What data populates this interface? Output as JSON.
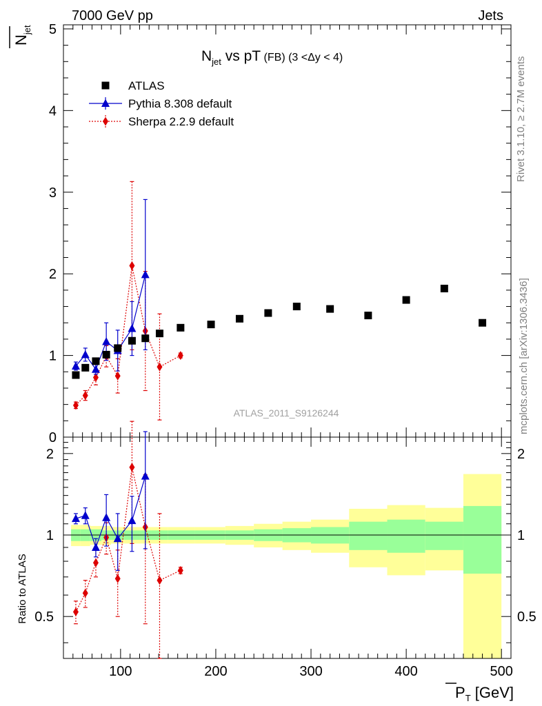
{
  "header": {
    "left": "7000 GeV pp",
    "right": "Jets"
  },
  "side": {
    "rivet": "Rivet 3.1.10, ≥ 2.7M events",
    "mcplots": "mcplots.cern.ch [arXiv:1306.3436]"
  },
  "chart_data": [
    {
      "type": "scatter",
      "title": "N_jet vs pT (FB) (3 < Δy < 4)",
      "title_main": "N",
      "title_sub": "jet",
      "title_mid": " vs pT",
      "title_small": " (FB) (3 <Δy < 4)",
      "ylabel": "N̄jet",
      "ylabel_main": "N",
      "ylabel_sub": "jet",
      "watermark": "ATLAS_2011_S9126244",
      "xlim": [
        40,
        510
      ],
      "ylim": [
        0,
        5.05
      ],
      "yticks": [
        0,
        1,
        2,
        3,
        4,
        5
      ],
      "ytick_labels": [
        "0",
        "1",
        "2",
        "3",
        "4",
        "5"
      ],
      "legend_position": "top-left",
      "series": [
        {
          "name": "ATLAS",
          "color": "#000000",
          "marker": "square",
          "x": [
            53,
            63,
            74,
            85,
            97,
            112,
            126,
            141,
            163,
            195,
            225,
            255,
            285,
            320,
            360,
            400,
            440,
            480
          ],
          "y": [
            0.76,
            0.85,
            0.93,
            1.01,
            1.09,
            1.18,
            1.21,
            1.27,
            1.34,
            1.38,
            1.45,
            1.52,
            1.6,
            1.57,
            1.49,
            1.68,
            1.82,
            1.4
          ]
        },
        {
          "name": "Pythia 8.308 default",
          "color": "#0000cc",
          "marker": "triangle",
          "line": "solid",
          "x": [
            53,
            63,
            74,
            85,
            97,
            112,
            126
          ],
          "y": [
            0.87,
            1.01,
            0.83,
            1.17,
            1.06,
            1.33,
            1.99
          ],
          "yerr": [
            0.05,
            0.08,
            0.06,
            0.23,
            0.25,
            0.33,
            0.92
          ]
        },
        {
          "name": "Sherpa 2.2.9 default",
          "color": "#dd0000",
          "marker": "diamond",
          "line": "dotted",
          "x": [
            53,
            63,
            74,
            85,
            97,
            112,
            126,
            141,
            163
          ],
          "y": [
            0.39,
            0.51,
            0.73,
            0.99,
            0.75,
            2.1,
            1.3,
            0.86,
            1.0
          ],
          "yerr": [
            0.04,
            0.06,
            0.09,
            0.13,
            0.21,
            1.03,
            0.73,
            0.65,
            0.03
          ]
        }
      ]
    },
    {
      "type": "scatter",
      "title": "",
      "xlabel": "P̄T [GeV]",
      "xlabel_main": "P",
      "xlabel_sub": "T",
      "xlabel_unit": " [GeV]",
      "ylabel": "Ratio to ATLAS",
      "xlim": [
        40,
        510
      ],
      "ylim": [
        0.35,
        2.3
      ],
      "xticks": [
        100,
        200,
        300,
        400,
        500
      ],
      "xtick_labels": [
        "100",
        "200",
        "300",
        "400",
        "500"
      ],
      "yticks": [
        0.5,
        1,
        2
      ],
      "ytick_labels": [
        "0.5",
        "1",
        "2"
      ],
      "reference_line": 1,
      "bands": {
        "edges": [
          48,
          58,
          68,
          80,
          90,
          104,
          120,
          132,
          150,
          178,
          210,
          240,
          270,
          300,
          340,
          380,
          420,
          460,
          500
        ],
        "yellow_lo": [
          0.91,
          0.91,
          0.92,
          0.92,
          0.93,
          0.93,
          0.93,
          0.93,
          0.93,
          0.93,
          0.92,
          0.9,
          0.88,
          0.86,
          0.76,
          0.71,
          0.74,
          0.35
        ],
        "yellow_hi": [
          1.09,
          1.09,
          1.08,
          1.08,
          1.07,
          1.07,
          1.07,
          1.07,
          1.07,
          1.07,
          1.08,
          1.1,
          1.12,
          1.14,
          1.25,
          1.29,
          1.26,
          1.68
        ],
        "green_lo": [
          0.95,
          0.95,
          0.95,
          0.96,
          0.96,
          0.96,
          0.96,
          0.96,
          0.96,
          0.96,
          0.96,
          0.95,
          0.94,
          0.93,
          0.88,
          0.86,
          0.88,
          0.72
        ],
        "green_hi": [
          1.05,
          1.05,
          1.05,
          1.04,
          1.04,
          1.04,
          1.04,
          1.04,
          1.04,
          1.04,
          1.04,
          1.05,
          1.06,
          1.07,
          1.12,
          1.14,
          1.12,
          1.28
        ],
        "yellow_color": "#ffff99",
        "green_color": "#99ff99"
      },
      "series": [
        {
          "name": "Pythia 8.308 default",
          "color": "#0000cc",
          "marker": "triangle",
          "line": "solid",
          "x": [
            53,
            63,
            74,
            85,
            97,
            112,
            126
          ],
          "y": [
            1.15,
            1.18,
            0.9,
            1.16,
            0.97,
            1.13,
            1.65
          ],
          "yerr": [
            0.05,
            0.08,
            0.07,
            0.25,
            0.23,
            0.26,
            0.76
          ]
        },
        {
          "name": "Sherpa 2.2.9 default",
          "color": "#dd0000",
          "marker": "diamond",
          "line": "dotted",
          "x": [
            53,
            63,
            74,
            85,
            97,
            112,
            126,
            141,
            163
          ],
          "y": [
            0.52,
            0.61,
            0.79,
            0.98,
            0.69,
            1.78,
            1.07,
            0.68,
            0.74
          ],
          "yerr": [
            0.05,
            0.07,
            0.09,
            0.13,
            0.19,
            0.85,
            0.6,
            0.52,
            0.02
          ]
        }
      ]
    }
  ]
}
